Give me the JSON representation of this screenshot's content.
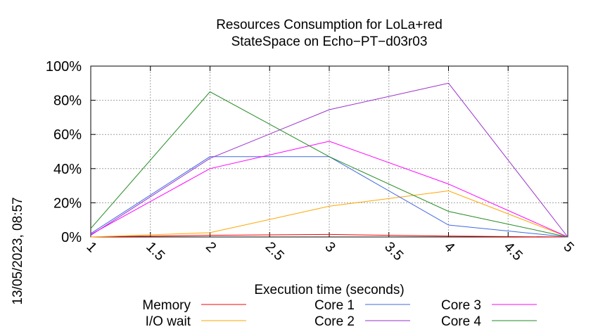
{
  "chart_data": {
    "type": "line",
    "title": [
      "Resources Consumption for LoLa+red",
      "StateSpace on Echo−PT−d03r03"
    ],
    "xlabel": "Execution time (seconds)",
    "ylabel": "",
    "timestamp": "13/05/2023, 08:57",
    "xlim": [
      1,
      5
    ],
    "ylim": [
      0,
      100
    ],
    "x_ticks": [
      "1",
      "1.5",
      "2",
      "2.5",
      "3",
      "3.5",
      "4",
      "4.5",
      "5"
    ],
    "x_tick_values": [
      1,
      1.5,
      2,
      2.5,
      3,
      3.5,
      4,
      4.5,
      5
    ],
    "y_ticks": [
      "0%",
      "20%",
      "40%",
      "60%",
      "80%",
      "100%"
    ],
    "y_tick_values": [
      0,
      20,
      40,
      60,
      80,
      100
    ],
    "grid": true,
    "legend_position": "bottom",
    "x": [
      1,
      2,
      3,
      4,
      5
    ],
    "series": [
      {
        "name": "Memory",
        "color": "#ff0000",
        "values": [
          0,
          1,
          1.5,
          0.5,
          0
        ]
      },
      {
        "name": "I/O wait",
        "color": "#ffa500",
        "values": [
          0,
          2.5,
          18,
          27,
          0
        ]
      },
      {
        "name": "Core 1",
        "color": "#4169e1",
        "values": [
          2,
          47,
          47,
          7,
          0
        ]
      },
      {
        "name": "Core 2",
        "color": "#9932cc",
        "values": [
          1,
          46,
          74.5,
          90,
          0
        ]
      },
      {
        "name": "Core 3",
        "color": "#ff00ff",
        "values": [
          1.5,
          40,
          56,
          31,
          0
        ]
      },
      {
        "name": "Core 4",
        "color": "#228b22",
        "values": [
          5,
          85,
          47,
          15,
          0
        ]
      }
    ]
  }
}
